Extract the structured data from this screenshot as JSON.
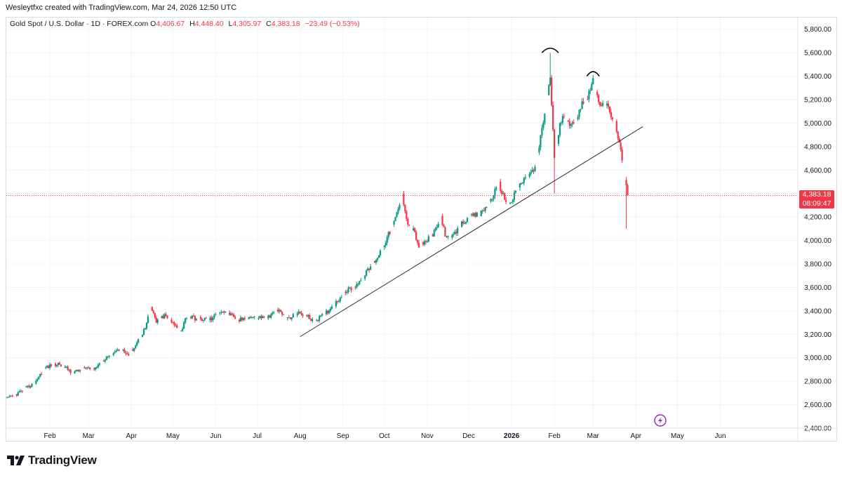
{
  "header": {
    "created_text": "Wesleytfxc created with TradingView.com, Mar 24, 2026 12:50 UTC"
  },
  "legend": {
    "symbol": "Gold Spot / U.S. Dollar · 1D · FOREX.com",
    "open_label": "O",
    "open": "4,406.67",
    "high_label": "H",
    "high": "4,448.40",
    "low_label": "L",
    "low": "4,305.97",
    "close_label": "C",
    "close": "4,383.18",
    "change": "−23.49 (−0.53%)"
  },
  "price_badge": {
    "price": "4,383.18",
    "countdown": "08:09:47"
  },
  "branding": {
    "name": "TradingView"
  },
  "colors": {
    "up": "#089981",
    "down": "#f23645",
    "grid": "#f0f3fa",
    "text": "#131722",
    "trendline": "#2a2e39",
    "lightning": "#9c27b0"
  },
  "icons": {
    "lightning": "lightning-icon",
    "logo": "tradingview-logo-icon"
  },
  "chart_data": {
    "type": "candlestick",
    "title": "Gold Spot / U.S. Dollar · 1D · FOREX.com",
    "ylim": [
      2400,
      5900
    ],
    "y_ticks": [
      "5,800.00",
      "5,600.00",
      "5,400.00",
      "5,200.00",
      "5,000.00",
      "4,800.00",
      "4,600.00",
      "4,400.00",
      "4,200.00",
      "4,000.00",
      "3,800.00",
      "3,600.00",
      "3,400.00",
      "3,200.00",
      "3,000.00",
      "2,800.00",
      "2,600.00",
      "2,400.00"
    ],
    "y_tick_values": [
      5800,
      5600,
      5400,
      5200,
      5000,
      4800,
      4600,
      4400,
      4200,
      4000,
      3800,
      3600,
      3400,
      3200,
      3000,
      2800,
      2600,
      2400
    ],
    "x_ticks": [
      {
        "label": "Feb",
        "day": 31
      },
      {
        "label": "Mar",
        "day": 59
      },
      {
        "label": "Apr",
        "day": 90
      },
      {
        "label": "May",
        "day": 120
      },
      {
        "label": "Jun",
        "day": 151
      },
      {
        "label": "Jul",
        "day": 181
      },
      {
        "label": "Aug",
        "day": 212
      },
      {
        "label": "Sep",
        "day": 243
      },
      {
        "label": "Oct",
        "day": 273
      },
      {
        "label": "Nov",
        "day": 304
      },
      {
        "label": "Dec",
        "day": 334
      },
      {
        "label": "2026",
        "day": 365
      },
      {
        "label": "Feb",
        "day": 396
      },
      {
        "label": "Mar",
        "day": 424
      },
      {
        "label": "Apr",
        "day": 455
      },
      {
        "label": "May",
        "day": 485
      },
      {
        "label": "Jun",
        "day": 516
      }
    ],
    "x_bold_labels": [
      "2026"
    ],
    "last_price": 4383.18,
    "anchors": [
      [
        0,
        2650
      ],
      [
        10,
        2710
      ],
      [
        20,
        2790
      ],
      [
        28,
        2920
      ],
      [
        38,
        2950
      ],
      [
        48,
        2870
      ],
      [
        56,
        2920
      ],
      [
        62,
        2890
      ],
      [
        72,
        3010
      ],
      [
        82,
        3080
      ],
      [
        88,
        3020
      ],
      [
        95,
        3150
      ],
      [
        100,
        3250
      ],
      [
        104,
        3430
      ],
      [
        108,
        3310
      ],
      [
        114,
        3360
      ],
      [
        120,
        3290
      ],
      [
        126,
        3230
      ],
      [
        130,
        3360
      ],
      [
        138,
        3330
      ],
      [
        148,
        3330
      ],
      [
        154,
        3400
      ],
      [
        160,
        3390
      ],
      [
        166,
        3310
      ],
      [
        172,
        3340
      ],
      [
        180,
        3350
      ],
      [
        188,
        3340
      ],
      [
        196,
        3400
      ],
      [
        204,
        3330
      ],
      [
        210,
        3380
      ],
      [
        216,
        3360
      ],
      [
        222,
        3320
      ],
      [
        226,
        3340
      ],
      [
        232,
        3400
      ],
      [
        238,
        3470
      ],
      [
        244,
        3560
      ],
      [
        250,
        3600
      ],
      [
        256,
        3660
      ],
      [
        262,
        3760
      ],
      [
        268,
        3860
      ],
      [
        274,
        4000
      ],
      [
        280,
        4150
      ],
      [
        286,
        4380
      ],
      [
        290,
        4150
      ],
      [
        294,
        4090
      ],
      [
        298,
        3950
      ],
      [
        304,
        4000
      ],
      [
        310,
        4080
      ],
      [
        314,
        4200
      ],
      [
        318,
        4010
      ],
      [
        324,
        4050
      ],
      [
        330,
        4160
      ],
      [
        336,
        4210
      ],
      [
        342,
        4220
      ],
      [
        348,
        4310
      ],
      [
        356,
        4480
      ],
      [
        360,
        4350
      ],
      [
        364,
        4310
      ],
      [
        370,
        4460
      ],
      [
        376,
        4540
      ],
      [
        382,
        4610
      ],
      [
        386,
        4870
      ],
      [
        390,
        5150
      ],
      [
        393,
        5400
      ],
      [
        396,
        4700
      ],
      [
        400,
        4980
      ],
      [
        404,
        5080
      ],
      [
        408,
        4970
      ],
      [
        412,
        5050
      ],
      [
        416,
        5180
      ],
      [
        420,
        5220
      ],
      [
        424,
        5400
      ],
      [
        428,
        5150
      ],
      [
        432,
        5200
      ],
      [
        436,
        5090
      ],
      [
        440,
        4990
      ],
      [
        443,
        4850
      ],
      [
        446,
        4560
      ],
      [
        448,
        4450
      ],
      [
        449,
        4383
      ]
    ],
    "seed": 42,
    "spikes": [
      [
        393,
        5598,
        5400
      ],
      [
        396,
        4400,
        4650
      ],
      [
        448,
        4100,
        4450
      ]
    ],
    "annotations": [
      {
        "type": "trendline",
        "from": [
          212,
          3180
        ],
        "to": [
          460,
          4970
        ]
      },
      {
        "type": "arc",
        "center_day": 393,
        "price": 5630,
        "width_days": 12
      },
      {
        "type": "arc",
        "center_day": 424,
        "price": 5430,
        "width_days": 9
      }
    ]
  }
}
